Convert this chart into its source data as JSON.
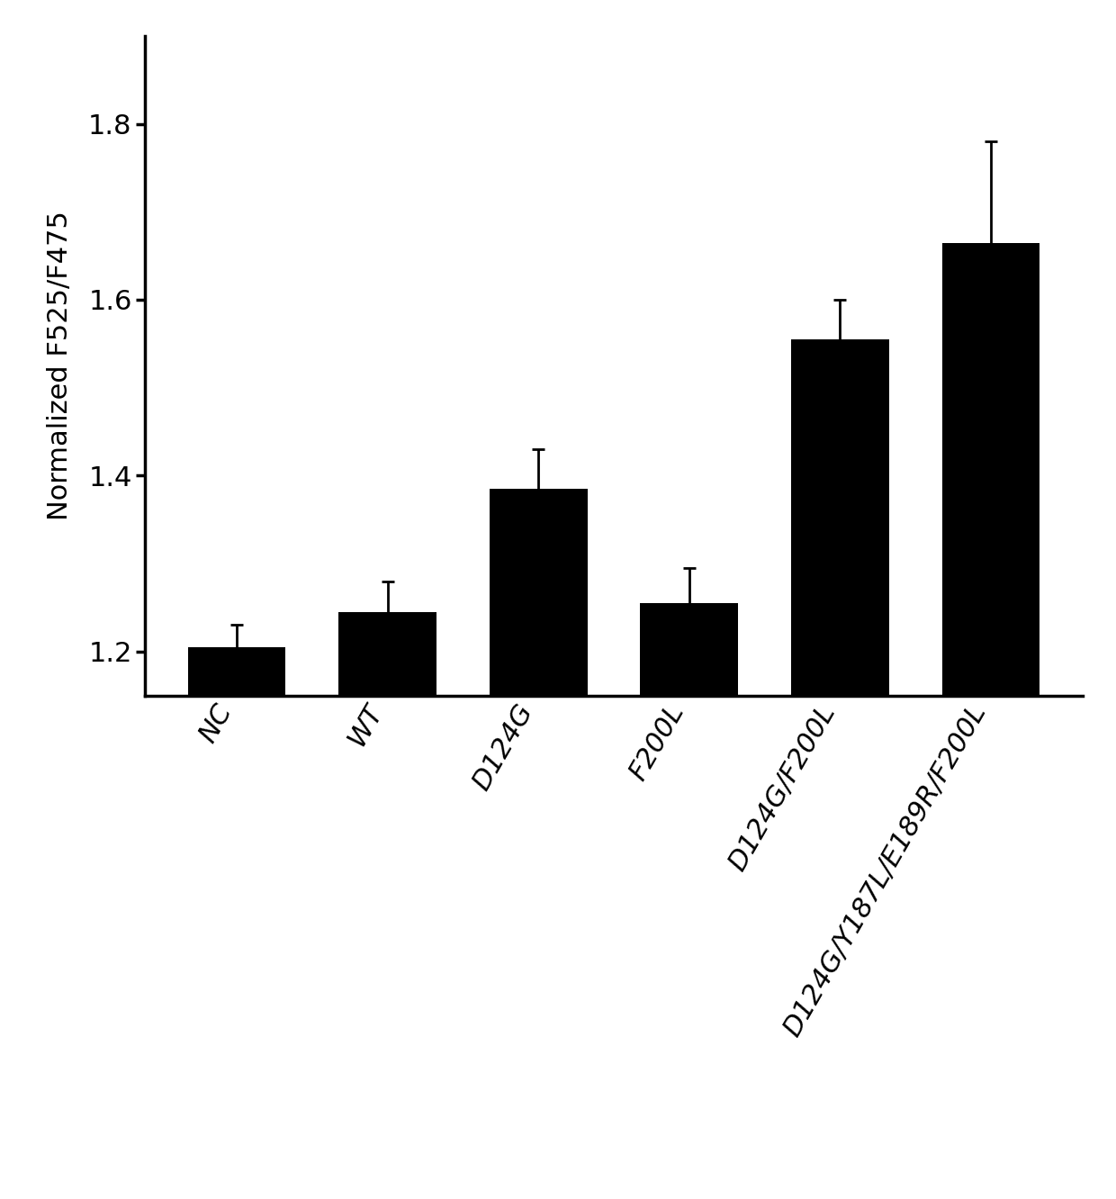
{
  "categories": [
    "NC",
    "WT",
    "D124G",
    "F200L",
    "D124G/F200L",
    "D124G/Y187L/E189R/F200L"
  ],
  "values": [
    1.205,
    1.245,
    1.385,
    1.255,
    1.555,
    1.665
  ],
  "errors": [
    0.025,
    0.035,
    0.045,
    0.04,
    0.045,
    0.115
  ],
  "bar_color": "#000000",
  "ylabel": "Normalized F525/F475",
  "ylim": [
    1.15,
    1.9
  ],
  "yticks": [
    1.2,
    1.4,
    1.6,
    1.8
  ],
  "background_color": "#ffffff",
  "bar_width": 0.65,
  "tick_label_fontsize": 22,
  "ylabel_fontsize": 22,
  "xtick_rotation": 60,
  "xtick_ha": "right"
}
